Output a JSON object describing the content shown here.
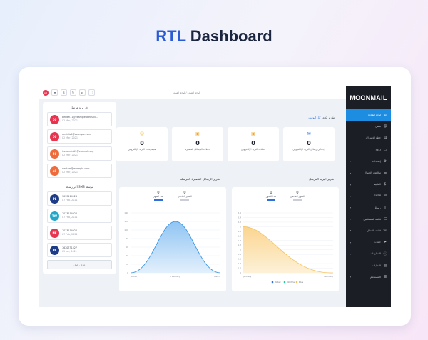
{
  "hero": {
    "prefix": "RTL",
    "suffix": "Dashboard"
  },
  "brand": "MOONMAIL",
  "nav": [
    {
      "label": "لوحة القيادة",
      "icon": "⌂",
      "active": true,
      "chev": false
    },
    {
      "label": "ملفي",
      "icon": "☺",
      "active": false,
      "chev": false
    },
    {
      "label": "خطة الاشتراك",
      "icon": "▤",
      "active": false,
      "chev": false
    },
    {
      "label": "SEO",
      "icon": "▭",
      "active": false,
      "chev": false
    },
    {
      "label": "إعدادات",
      "icon": "⚙",
      "active": false,
      "chev": true
    },
    {
      "label": "مكافحة الاحتيال",
      "icon": "☰",
      "active": false,
      "chev": true
    },
    {
      "label": "المالية",
      "icon": "$",
      "active": false,
      "chev": true
    },
    {
      "label": "SMTP",
      "icon": "✉",
      "active": false,
      "chev": true
    },
    {
      "label": "رسائل",
      "icon": "▯",
      "active": false,
      "chev": true
    },
    {
      "label": "قائمة المستلمين",
      "icon": "☷",
      "active": false,
      "chev": true
    },
    {
      "label": "قائمة الاتصال",
      "icon": "☏",
      "active": false,
      "chev": true
    },
    {
      "label": "حملات",
      "icon": "➤",
      "active": false,
      "chev": true
    },
    {
      "label": "المعلومات",
      "icon": "ⓘ",
      "active": false,
      "chev": true
    },
    {
      "label": "التحليلات",
      "icon": "▥",
      "active": false,
      "chev": false
    },
    {
      "label": "المستخدم",
      "icon": "☰",
      "active": false,
      "chev": true
    }
  ],
  "topbar": {
    "avatar": "AD",
    "breadcrumb": "لوحة القيادة / لوحة القيادة"
  },
  "email_panel": {
    "title": "آخر بريد مرسل",
    "items": [
      {
        "badge": "50",
        "color": "#e8344f",
        "email": "beedel11@examplebeedsolu...",
        "date": "02 Mar, 2021"
      },
      {
        "badge": "50",
        "color": "#e8344f",
        "email": "devinfo5@example.com",
        "date": "02 Mar, 2021"
      },
      {
        "badge": "50",
        "color": "#f06b3b",
        "email": "ikeoamfrail2@example.org",
        "date": "02 Mar, 2021"
      },
      {
        "badge": "49",
        "color": "#f06b3b",
        "email": "awsters@example.com",
        "date": "02 Mar, 2021"
      }
    ],
    "button": "عرض الكل"
  },
  "sms_panel": {
    "title": "آخر رسالة SMS مرسلة",
    "items": [
      {
        "badge": "PL",
        "color": "#1f3c88",
        "phone": "7033114924",
        "date": "07 Feb, 2021"
      },
      {
        "badge": "TW",
        "color": "#20a7c9",
        "phone": "7033114924",
        "date": "07 Feb, 2021"
      },
      {
        "badge": "NE",
        "color": "#e8344f",
        "phone": "7033114924",
        "date": "07 Feb, 2021"
      },
      {
        "badge": "PL",
        "color": "#1f3c88",
        "phone": "7620731327",
        "date": "05 Jan, 2021"
      }
    ],
    "button": "عرض الكل"
  },
  "report": {
    "title": "تقرير عام",
    "filter": "كل الوقت"
  },
  "stats": [
    {
      "value": "0",
      "label": "إجمالي رسائل البريد الإلكتروني",
      "icon": "✉",
      "color": "#2f6fe0"
    },
    {
      "value": "0",
      "label": "حملات البريد الإلكتروني",
      "icon": "▣",
      "color": "#f0a62e"
    },
    {
      "value": "0",
      "label": "حملات الرسائل القصيرة",
      "icon": "▣",
      "color": "#f0a62e"
    },
    {
      "value": "0",
      "label": "مجموعات البريد الإلكتروني",
      "icon": "☺",
      "color": "#f0c03a"
    }
  ],
  "email_chart": {
    "title": "تقرير البريد المرسل",
    "minis": [
      {
        "value": "0",
        "label": "هذا الشهر",
        "color": "#2f6fe0"
      },
      {
        "value": "0",
        "label": "الشهر الماضي",
        "color": "#c9ced8"
      }
    ],
    "legend": [
      {
        "name": "Today",
        "color": "#2f6fe0"
      },
      {
        "name": "Months",
        "color": "#23c9a0"
      },
      {
        "name": "Plus",
        "color": "#f4c35a"
      }
    ]
  },
  "sms_chart": {
    "title": "تقرير الرسائل القصيرة المرسلة",
    "minis": [
      {
        "value": "0",
        "label": "هذا الشهر",
        "color": "#2f6fe0"
      },
      {
        "value": "0",
        "label": "الشهر الماضي",
        "color": "#c9ced8"
      }
    ]
  },
  "chart_data": [
    {
      "type": "area",
      "title": "",
      "x": [
        "January",
        "February"
      ],
      "y_ticks": [
        0,
        0.2,
        0.4,
        0.6,
        0.8,
        1.0,
        1.2,
        1.4,
        1.6,
        1.8,
        2.0,
        2.2,
        2.4,
        2.6
      ],
      "ylim": [
        0,
        2.6
      ],
      "series": [
        {
          "name": "Plus",
          "values": [
            2.0,
            0
          ]
        }
      ],
      "grid": true
    },
    {
      "type": "area",
      "title": "",
      "x": [
        "January",
        "February",
        "March"
      ],
      "y_ticks": [
        0,
        20,
        40,
        60,
        80,
        100,
        120,
        140
      ],
      "ylim": [
        0,
        140
      ],
      "series": [
        {
          "values": [
            0,
            120,
            0
          ]
        }
      ],
      "grid": true
    }
  ]
}
